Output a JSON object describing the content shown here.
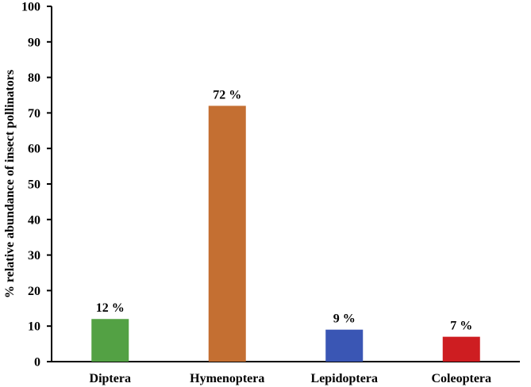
{
  "chart_data": {
    "type": "bar",
    "categories": [
      "Diptera",
      "Hymenoptera",
      "Lepidoptera",
      "Coleoptera"
    ],
    "values": [
      12,
      72,
      9,
      7
    ],
    "data_labels": [
      "12 %",
      "72 %",
      "9 %",
      "7 %"
    ],
    "colors": [
      "#53a144",
      "#c46f32",
      "#3a56b4",
      "#ce1d21"
    ],
    "title": "",
    "xlabel": "",
    "ylabel": "% relative abundance of insect pollinators",
    "ylim": [
      0,
      100
    ],
    "yticks": [
      "0",
      "10",
      "20",
      "30",
      "40",
      "50",
      "60",
      "70",
      "80",
      "90",
      "100"
    ],
    "grid": false,
    "legend": "none"
  }
}
